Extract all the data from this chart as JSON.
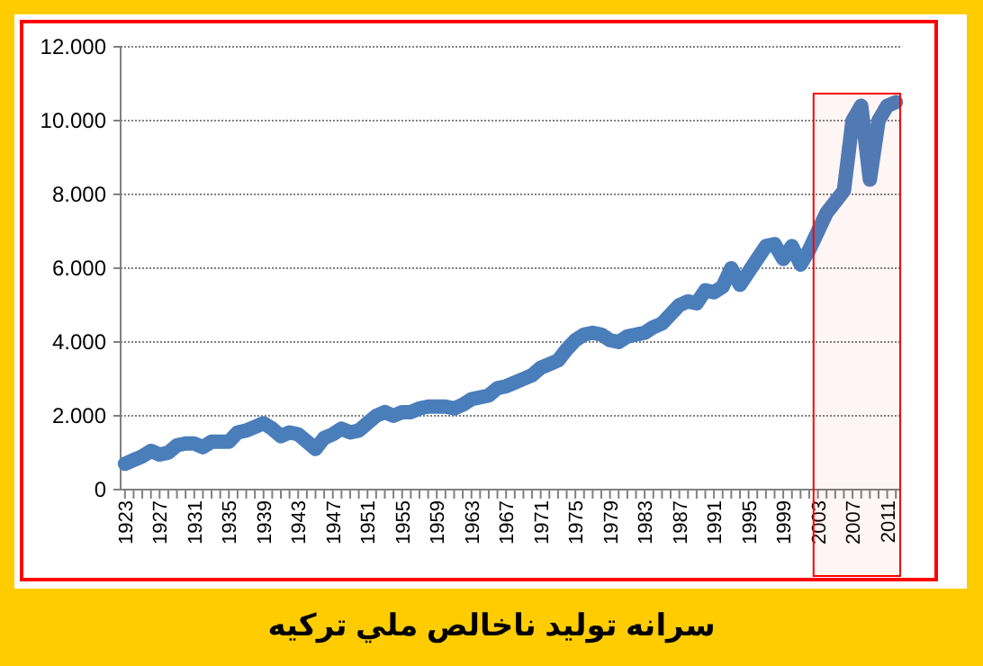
{
  "chart_data": {
    "type": "line",
    "title": "سرانه تولید ناخالص ملي ترکیه",
    "x": [
      1923,
      1924,
      1925,
      1926,
      1927,
      1928,
      1929,
      1930,
      1931,
      1932,
      1933,
      1934,
      1935,
      1936,
      1937,
      1938,
      1939,
      1940,
      1941,
      1942,
      1943,
      1944,
      1945,
      1946,
      1947,
      1948,
      1949,
      1950,
      1951,
      1952,
      1953,
      1954,
      1955,
      1956,
      1957,
      1958,
      1959,
      1960,
      1961,
      1962,
      1963,
      1964,
      1965,
      1966,
      1967,
      1968,
      1969,
      1970,
      1971,
      1972,
      1973,
      1974,
      1975,
      1976,
      1977,
      1978,
      1979,
      1980,
      1981,
      1982,
      1983,
      1984,
      1985,
      1986,
      1987,
      1988,
      1989,
      1990,
      1991,
      1992,
      1993,
      1994,
      1995,
      1996,
      1997,
      1998,
      1999,
      2000,
      2001,
      2002,
      2003,
      2004,
      2005,
      2006,
      2007,
      2008,
      2009,
      2010,
      2011,
      2012
    ],
    "series": [
      {
        "color": "#4a7ebb",
        "values": [
          700,
          800,
          900,
          1050,
          950,
          1000,
          1200,
          1250,
          1250,
          1150,
          1300,
          1300,
          1300,
          1550,
          1600,
          1700,
          1800,
          1650,
          1450,
          1550,
          1500,
          1300,
          1100,
          1400,
          1500,
          1650,
          1550,
          1600,
          1800,
          2000,
          2100,
          2000,
          2100,
          2100,
          2200,
          2250,
          2250,
          2250,
          2200,
          2300,
          2450,
          2500,
          2550,
          2750,
          2800,
          2900,
          3000,
          3100,
          3300,
          3400,
          3500,
          3800,
          4050,
          4200,
          4250,
          4200,
          4050,
          4000,
          4150,
          4200,
          4250,
          4400,
          4500,
          4750,
          5000,
          5100,
          5050,
          5400,
          5350,
          5500,
          6000,
          5550,
          5900,
          6250,
          6600,
          6650,
          6250,
          6600,
          6100,
          6500,
          7000,
          7500,
          7800,
          8100,
          10000,
          10400,
          8400,
          10000,
          10400,
          10500
        ]
      }
    ],
    "xlim": [
      1922.5,
      2012.5
    ],
    "xticks": [
      {
        "value": 1923,
        "label": "1923"
      },
      {
        "value": 1924,
        "label": null
      },
      {
        "value": 1925,
        "label": null
      },
      {
        "value": 1926,
        "label": null
      },
      {
        "value": 1927,
        "label": "1927"
      },
      {
        "value": 1928,
        "label": null
      },
      {
        "value": 1929,
        "label": null
      },
      {
        "value": 1930,
        "label": null
      },
      {
        "value": 1931,
        "label": "1931"
      },
      {
        "value": 1932,
        "label": null
      },
      {
        "value": 1933,
        "label": null
      },
      {
        "value": 1934,
        "label": null
      },
      {
        "value": 1935,
        "label": "1935"
      },
      {
        "value": 1936,
        "label": null
      },
      {
        "value": 1937,
        "label": null
      },
      {
        "value": 1938,
        "label": null
      },
      {
        "value": 1939,
        "label": "1939"
      },
      {
        "value": 1940,
        "label": null
      },
      {
        "value": 1941,
        "label": null
      },
      {
        "value": 1942,
        "label": null
      },
      {
        "value": 1943,
        "label": "1943"
      },
      {
        "value": 1944,
        "label": null
      },
      {
        "value": 1945,
        "label": null
      },
      {
        "value": 1946,
        "label": null
      },
      {
        "value": 1947,
        "label": "1947"
      },
      {
        "value": 1948,
        "label": null
      },
      {
        "value": 1949,
        "label": null
      },
      {
        "value": 1950,
        "label": null
      },
      {
        "value": 1951,
        "label": "1951"
      },
      {
        "value": 1952,
        "label": null
      },
      {
        "value": 1953,
        "label": null
      },
      {
        "value": 1954,
        "label": null
      },
      {
        "value": 1955,
        "label": "1955"
      },
      {
        "value": 1956,
        "label": null
      },
      {
        "value": 1957,
        "label": null
      },
      {
        "value": 1958,
        "label": null
      },
      {
        "value": 1959,
        "label": "1959"
      },
      {
        "value": 1960,
        "label": null
      },
      {
        "value": 1961,
        "label": null
      },
      {
        "value": 1962,
        "label": null
      },
      {
        "value": 1963,
        "label": "1963"
      },
      {
        "value": 1964,
        "label": null
      },
      {
        "value": 1965,
        "label": null
      },
      {
        "value": 1966,
        "label": null
      },
      {
        "value": 1967,
        "label": "1967"
      },
      {
        "value": 1968,
        "label": null
      },
      {
        "value": 1969,
        "label": null
      },
      {
        "value": 1970,
        "label": null
      },
      {
        "value": 1971,
        "label": "1971"
      },
      {
        "value": 1972,
        "label": null
      },
      {
        "value": 1973,
        "label": null
      },
      {
        "value": 1974,
        "label": null
      },
      {
        "value": 1975,
        "label": "1975"
      },
      {
        "value": 1976,
        "label": null
      },
      {
        "value": 1977,
        "label": null
      },
      {
        "value": 1978,
        "label": null
      },
      {
        "value": 1979,
        "label": "1979"
      },
      {
        "value": 1980,
        "label": null
      },
      {
        "value": 1981,
        "label": null
      },
      {
        "value": 1982,
        "label": null
      },
      {
        "value": 1983,
        "label": "1983"
      },
      {
        "value": 1984,
        "label": null
      },
      {
        "value": 1985,
        "label": null
      },
      {
        "value": 1986,
        "label": null
      },
      {
        "value": 1987,
        "label": "1987"
      },
      {
        "value": 1988,
        "label": null
      },
      {
        "value": 1989,
        "label": null
      },
      {
        "value": 1990,
        "label": null
      },
      {
        "value": 1991,
        "label": "1991"
      },
      {
        "value": 1992,
        "label": null
      },
      {
        "value": 1993,
        "label": null
      },
      {
        "value": 1994,
        "label": null
      },
      {
        "value": 1995,
        "label": "1995"
      },
      {
        "value": 1996,
        "label": null
      },
      {
        "value": 1997,
        "label": null
      },
      {
        "value": 1998,
        "label": null
      },
      {
        "value": 1999,
        "label": "1999"
      },
      {
        "value": 2000,
        "label": null
      },
      {
        "value": 2001,
        "label": null
      },
      {
        "value": 2002,
        "label": null
      },
      {
        "value": 2003,
        "label": "2003"
      },
      {
        "value": 2004,
        "label": null
      },
      {
        "value": 2005,
        "label": null
      },
      {
        "value": 2006,
        "label": null
      },
      {
        "value": 2007,
        "label": "2007"
      },
      {
        "value": 2008,
        "label": null
      },
      {
        "value": 2009,
        "label": null
      },
      {
        "value": 2010,
        "label": null
      },
      {
        "value": 2011,
        "label": "2011"
      },
      {
        "value": 2012,
        "label": null
      }
    ],
    "ylim": [
      0,
      12000
    ],
    "yticks": [
      0,
      {
        "value": 2000,
        "label": "2.000"
      },
      {
        "value": 4000,
        "label": "4.000"
      },
      {
        "value": 6000,
        "label": "6.000"
      },
      {
        "value": 8000,
        "label": "8.000"
      },
      {
        "value": 10000,
        "label": "10.000"
      },
      {
        "value": 12000,
        "label": "12.000"
      }
    ],
    "grid": "y",
    "marker": "none",
    "line_style": "solid",
    "bands": [
      {
        "axis": "x",
        "from": 2002.5,
        "to": 2012.5,
        "color": "#ff0000"
      }
    ]
  }
}
